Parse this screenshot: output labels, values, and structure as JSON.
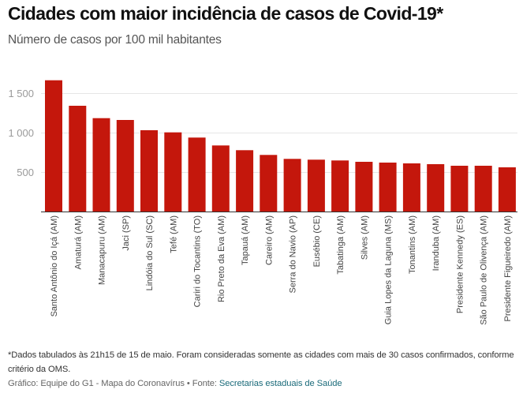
{
  "header": {
    "title": "Cidades com maior incidência de casos de Covid-19*",
    "subtitle": "Número de casos por 100 mil habitantes"
  },
  "footer": {
    "note": "*Dados tabulados às 21h15 de 15 de maio. Foram consideradas somente as cidades com mais de 30 casos confirmados, conforme critério da OMS.",
    "credit_prefix": "Gráfico: Equipe do G1 - Mapa do Coronavírus • Fonte: ",
    "source_link": "Secretarias estaduais de Saúde"
  },
  "colors": {
    "bar": "#c4170c",
    "link": "#1b6b7a"
  },
  "chart_data": {
    "type": "bar",
    "title": "Cidades com maior incidência de casos de Covid-19*",
    "subtitle": "Número de casos por 100 mil habitantes",
    "xlabel": "",
    "ylabel": "",
    "ylim": [
      0,
      1700
    ],
    "yticks": [
      500,
      1000,
      1500
    ],
    "ytick_labels": [
      "500",
      "1 000",
      "1 500"
    ],
    "grid": true,
    "legend": "none",
    "categories": [
      "Santo Antônio do Içá (AM)",
      "Amaturá (AM)",
      "Manacapuru (AM)",
      "Jaci (SP)",
      "Lindóia do Sul (SC)",
      "Tefé (AM)",
      "Cariri do Tocantins (TO)",
      "Rio Preto da Eva (AM)",
      "Tapauá (AM)",
      "Careiro (AM)",
      "Serra do Navio (AP)",
      "Eusébio (CE)",
      "Tabatinga (AM)",
      "Silves (AM)",
      "Guia Lopes da Laguna (MS)",
      "Tonantins (AM)",
      "Iranduba (AM)",
      "Presidente Kennedy (ES)",
      "São Paulo de Olivença (AM)",
      "Presidente Figueiredo (AM)"
    ],
    "series": [
      {
        "name": "Casos por 100 mil habitantes",
        "values": [
          1663,
          1340,
          1183,
          1160,
          1030,
          1003,
          937,
          837,
          777,
          717,
          667,
          657,
          647,
          630,
          620,
          610,
          600,
          580,
          580,
          560
        ]
      }
    ]
  }
}
